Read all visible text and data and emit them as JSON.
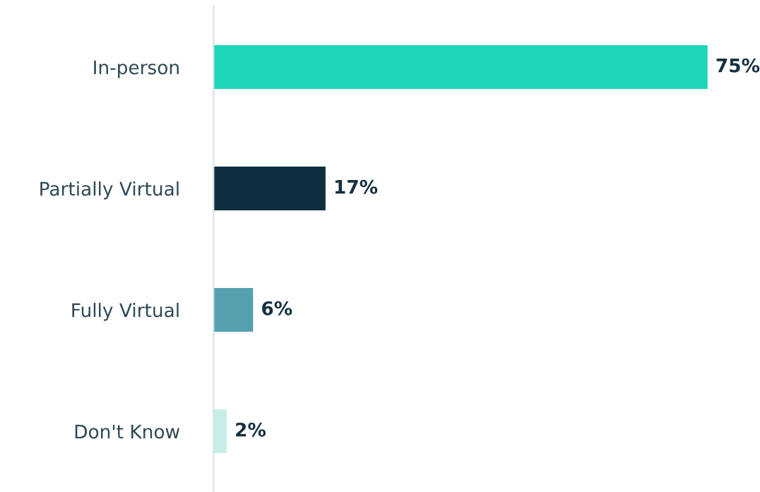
{
  "chart_data": {
    "type": "bar",
    "orientation": "horizontal",
    "categories": [
      "In-person",
      "Partially Virtual",
      "Fully Virtual",
      "Don't Know"
    ],
    "values": [
      75,
      17,
      6,
      2
    ],
    "colors": [
      "#1dd6bc",
      "#0f2f40",
      "#55a0ae",
      "#c5eee9"
    ],
    "value_labels": [
      "75%",
      "17%",
      "6%",
      "2%"
    ],
    "tick_labels": "y",
    "grid": false,
    "legend": false
  }
}
